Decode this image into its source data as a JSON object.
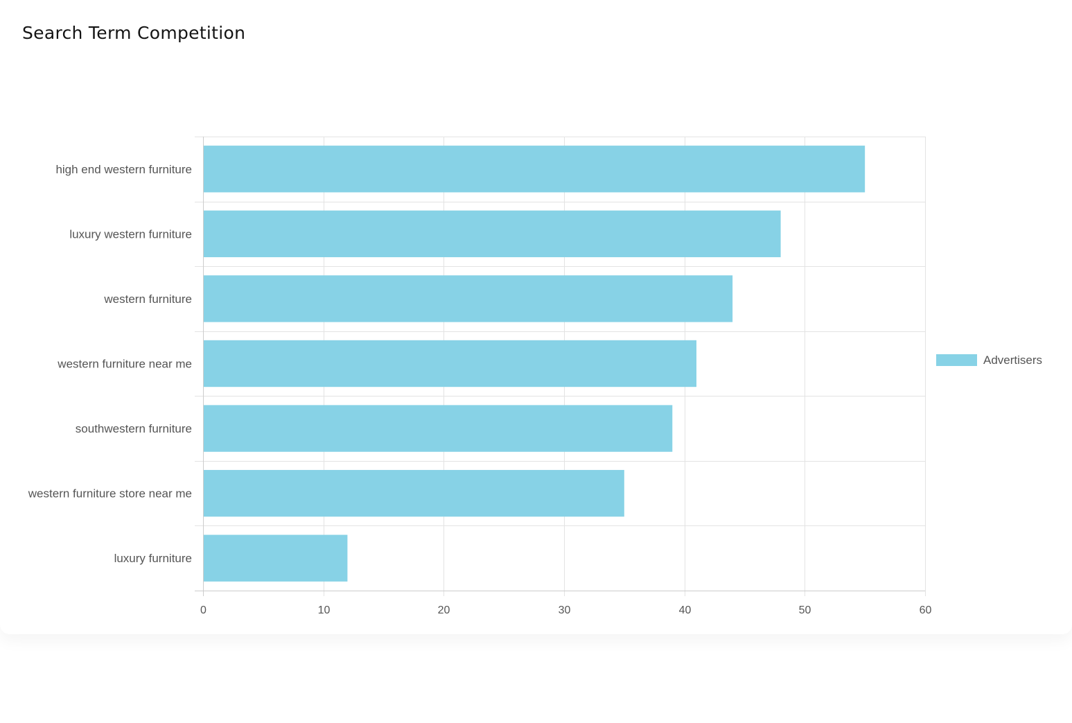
{
  "card": {
    "title": "Search Term Competition"
  },
  "colors": {
    "bar": "#87d2e6",
    "grid": "#e3e3e3",
    "axis": "#cccccc",
    "text": "#555555"
  },
  "chart_data": {
    "type": "bar",
    "orientation": "horizontal",
    "title": "Search Term Competition",
    "categories": [
      "high end western furniture",
      "luxury western furniture",
      "western furniture",
      "western furniture near me",
      "southwestern furniture",
      "western furniture store near me",
      "luxury furniture"
    ],
    "series": [
      {
        "name": "Advertisers",
        "values": [
          55,
          48,
          44,
          41,
          39,
          35,
          12
        ]
      }
    ],
    "xlim": [
      0,
      60
    ],
    "xticks": [
      0,
      10,
      20,
      30,
      40,
      50,
      60
    ],
    "grid": true,
    "legend": "right"
  }
}
